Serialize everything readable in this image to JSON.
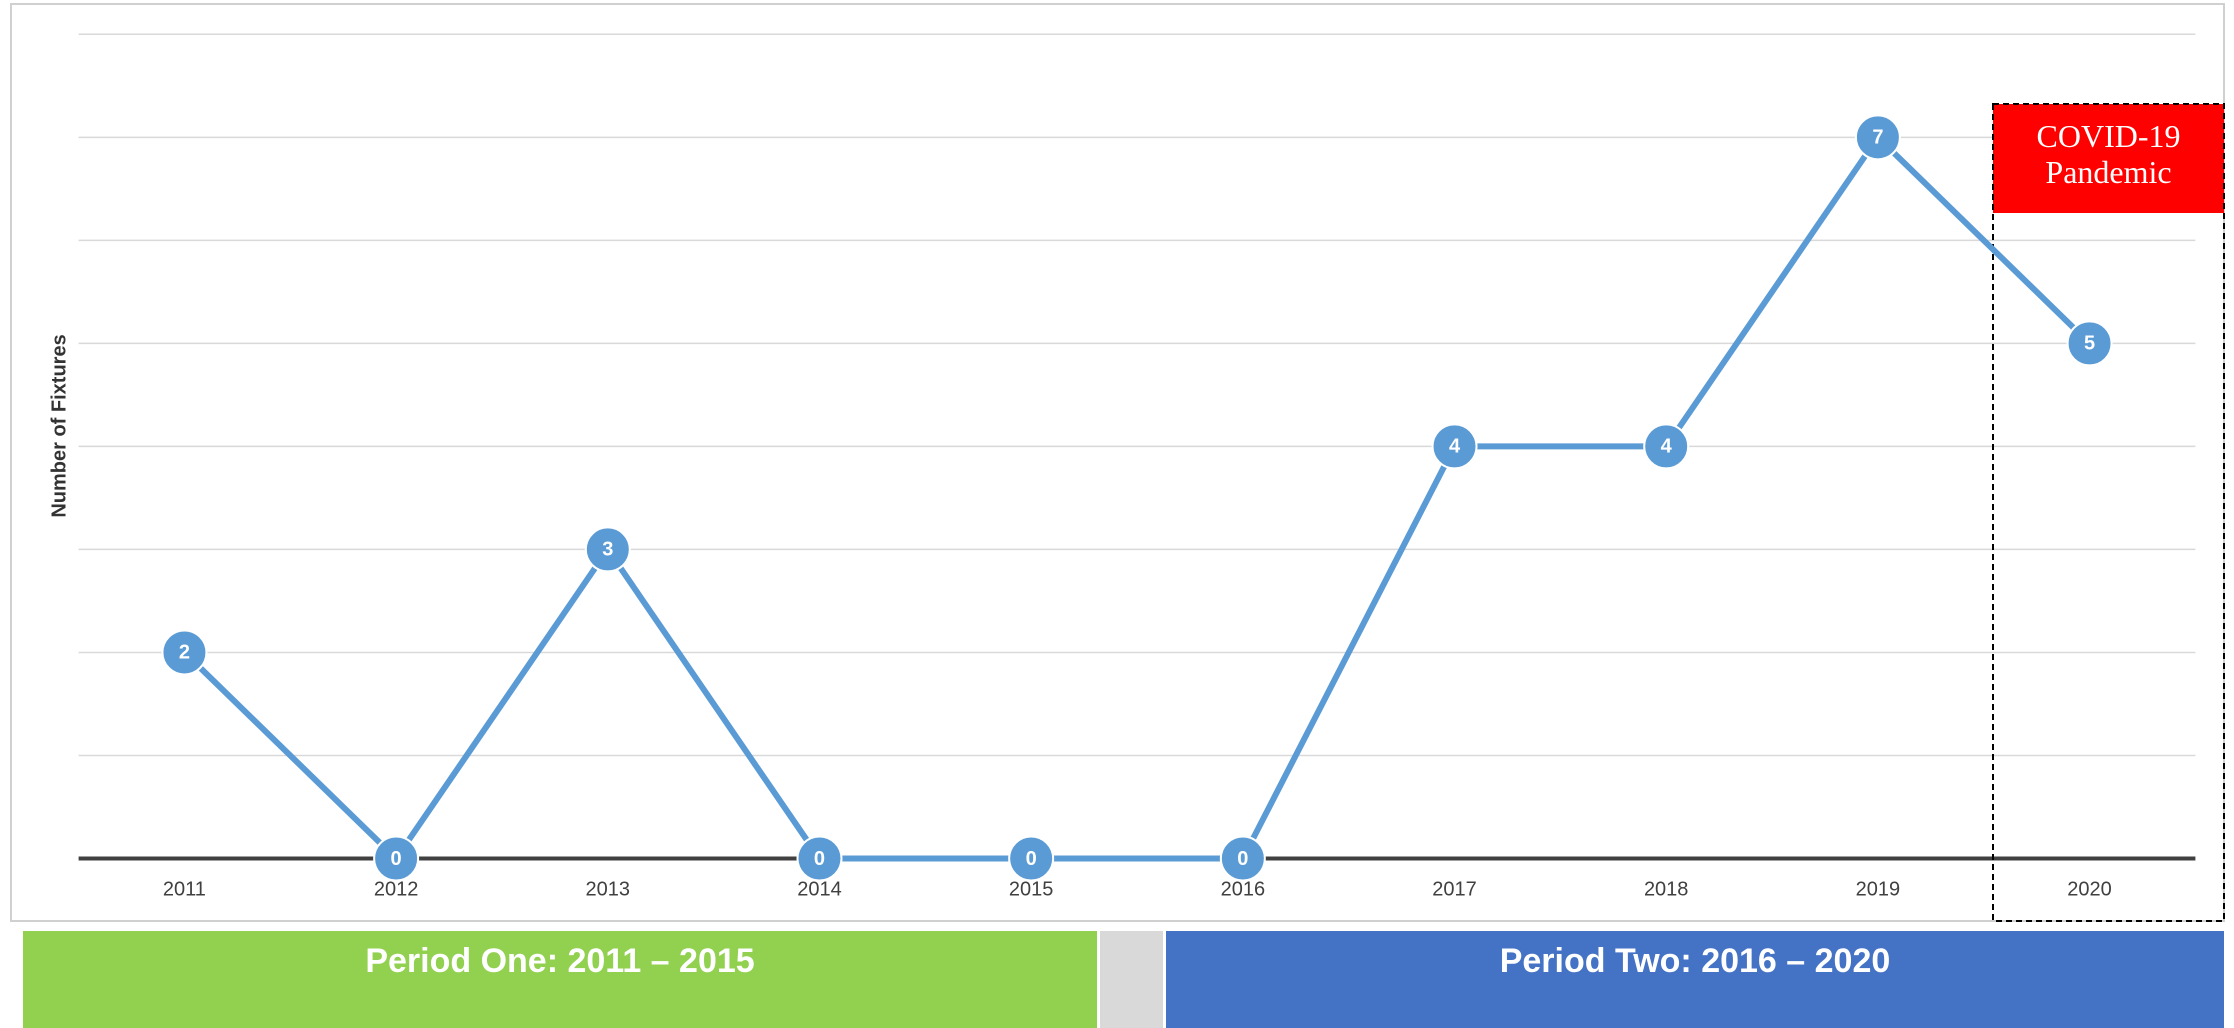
{
  "chart_data": {
    "type": "line",
    "y_axis_label": "Number of Fixtures",
    "categories": [
      "2011",
      "2012",
      "2013",
      "2014",
      "2015",
      "2016",
      "2017",
      "2018",
      "2019",
      "2020"
    ],
    "series": [
      {
        "name": "Fixtures",
        "color": "#5b9bd5",
        "values": [
          2,
          0,
          3,
          0,
          0,
          0,
          4,
          4,
          7,
          5
        ]
      }
    ],
    "ylim": [
      0,
      8
    ],
    "yticks": [
      0,
      1,
      2,
      3,
      4,
      5,
      6,
      7,
      8
    ],
    "grid": true,
    "annotations": [
      "COVID-19 Pandemic"
    ],
    "periods": [
      "Period One: 2011 – 2015",
      "Period Two: 2016 – 2020"
    ]
  }
}
